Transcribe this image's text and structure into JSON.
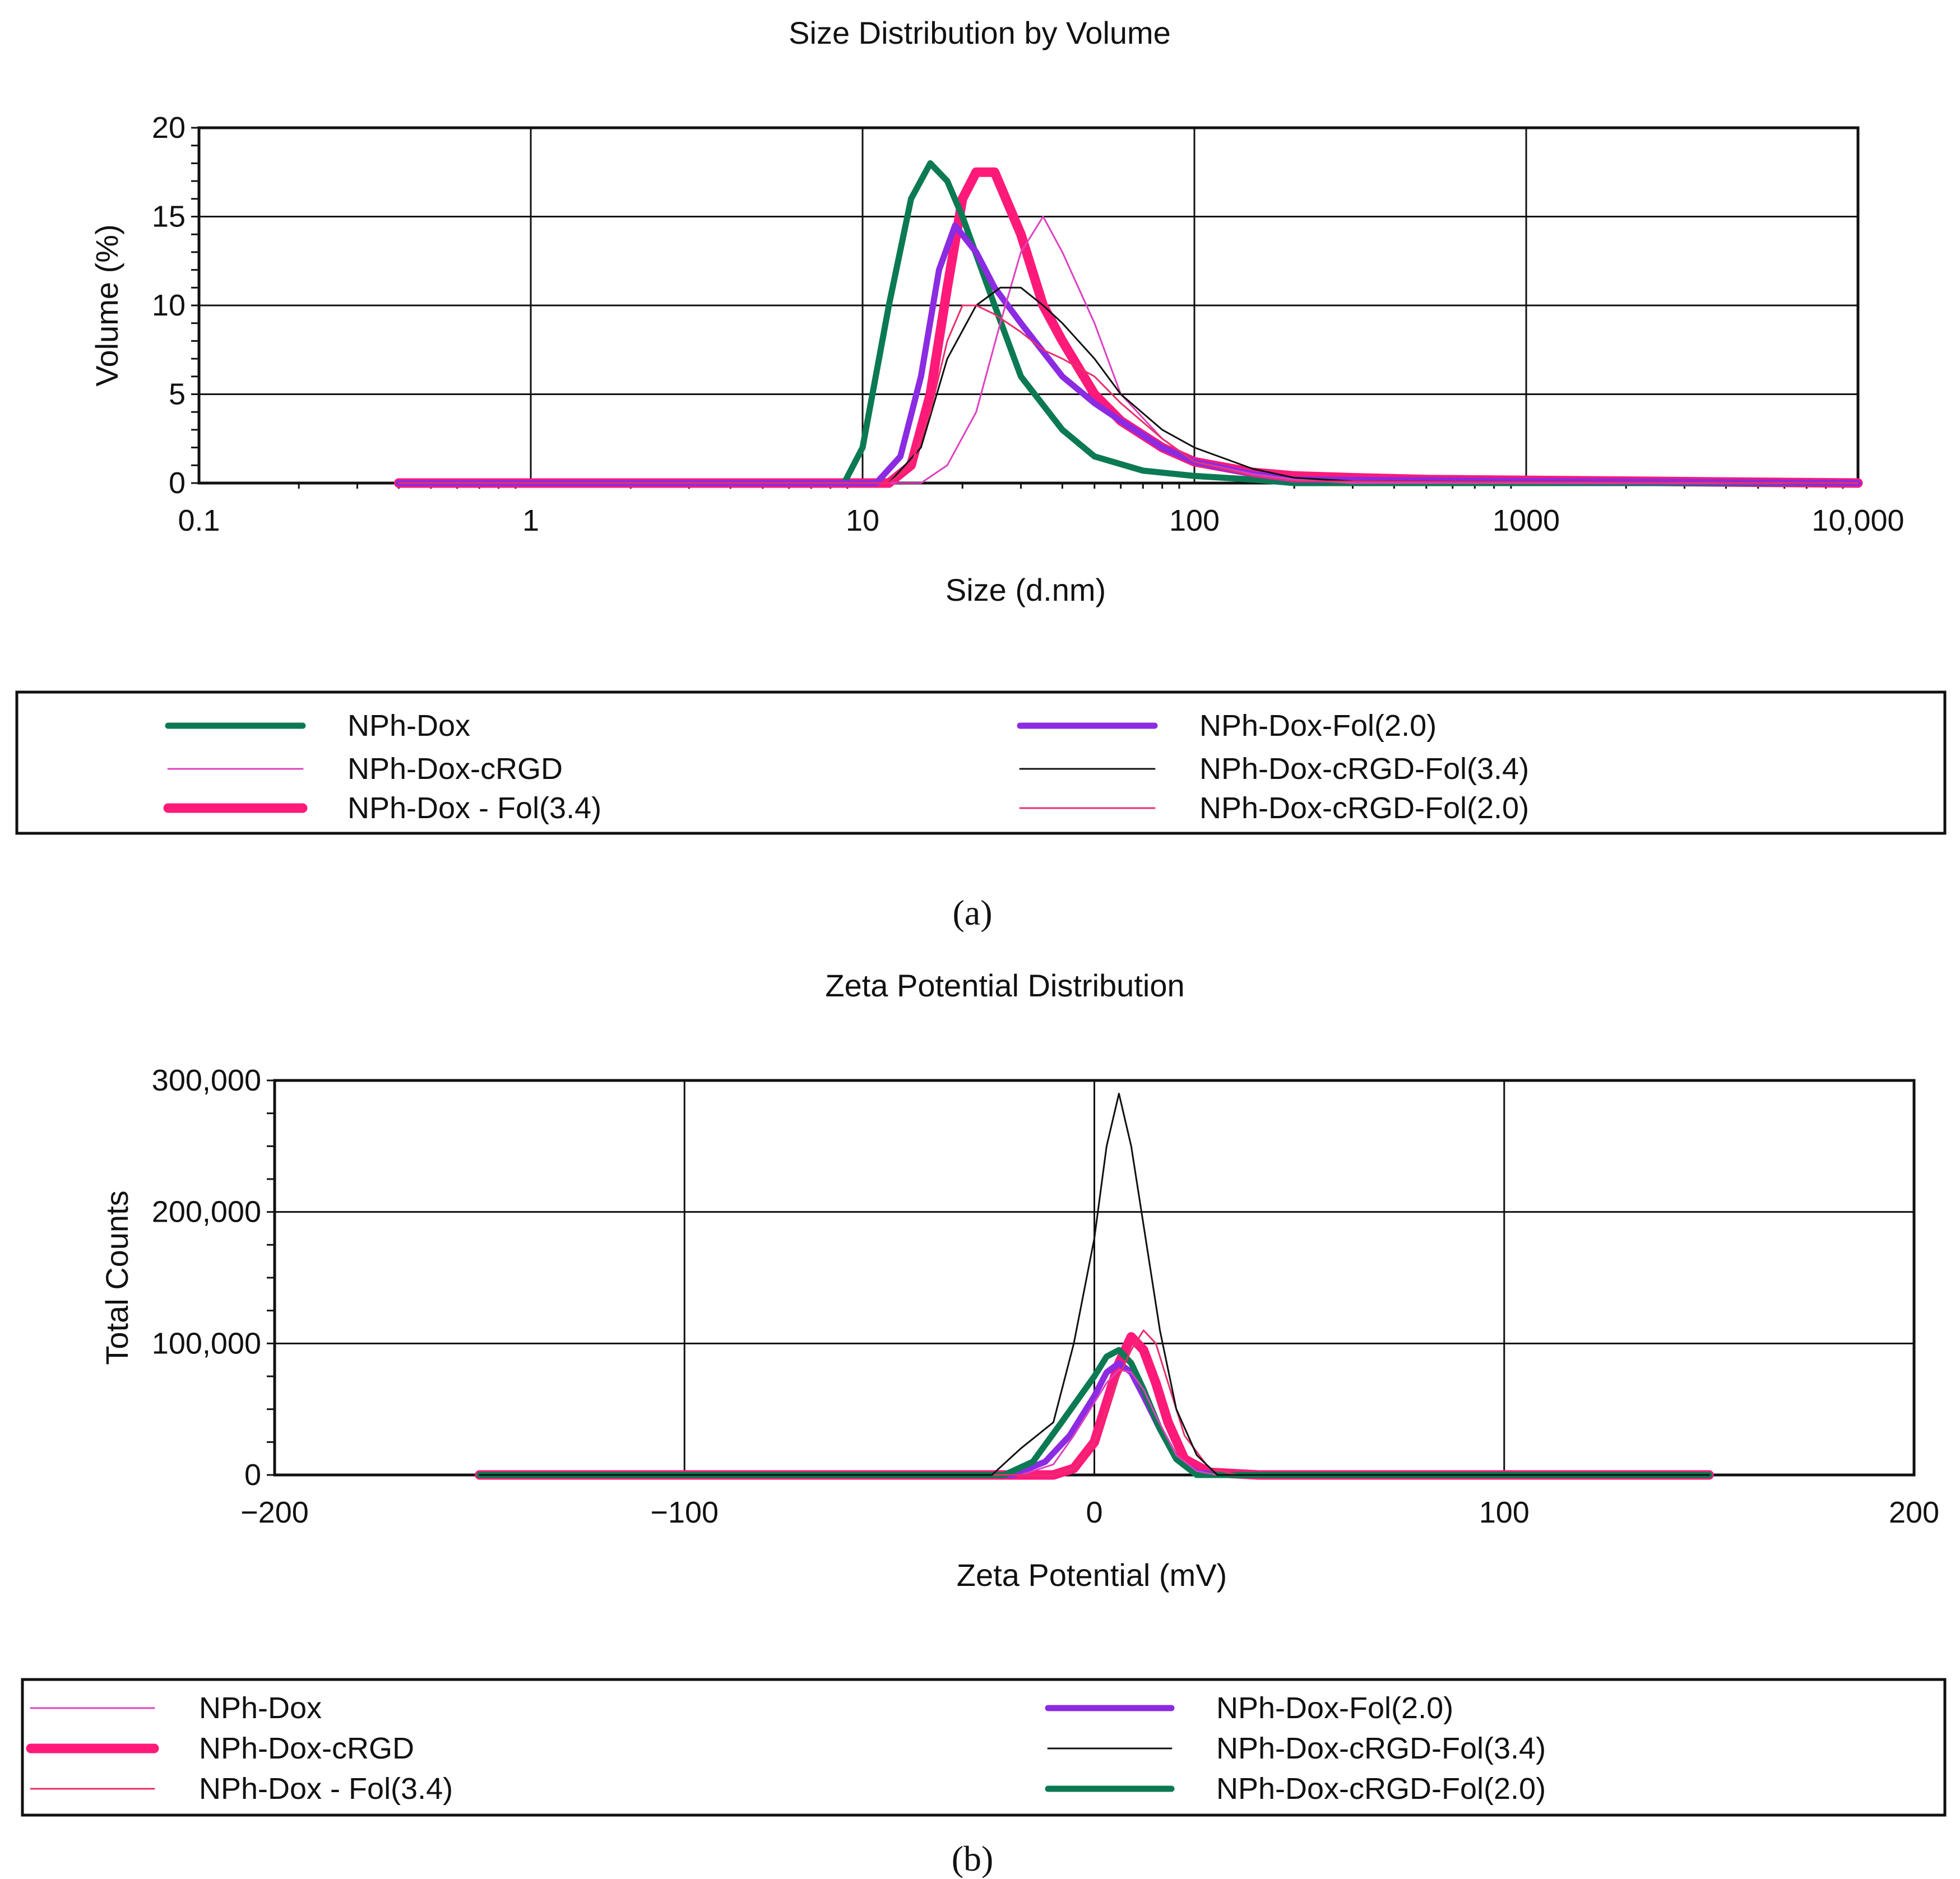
{
  "chart_data": [
    {
      "type": "line",
      "panel_label": "(a)",
      "title": "Size Distribution by Volume",
      "xlabel": "Size (d.nm)",
      "ylabel": "Volume (%)",
      "xscale": "log",
      "xlim": [
        0.1,
        10000
      ],
      "ylim": [
        0,
        20
      ],
      "xticks": [
        0.1,
        1,
        10,
        100,
        1000,
        10000
      ],
      "xtick_labels": [
        "0.1",
        "1",
        "10",
        "100",
        "1000",
        "10,000"
      ],
      "yticks": [
        0,
        5,
        10,
        15,
        20
      ],
      "ytick_labels": [
        "0",
        "5",
        "10",
        "15",
        "20"
      ],
      "grid": true,
      "legend_position": "bottom",
      "series": [
        {
          "name": "NPh-Dox",
          "color": "#0b7a52",
          "weight": "thick",
          "x": [
            0.4,
            8.8,
            10,
            12,
            14,
            16,
            18,
            20,
            25,
            30,
            40,
            50,
            70,
            100,
            150,
            200,
            10000
          ],
          "y": [
            0,
            0,
            2,
            10,
            16,
            18,
            17,
            15,
            10,
            6,
            3,
            1.5,
            0.7,
            0.4,
            0.2,
            0,
            0
          ]
        },
        {
          "name": "NPh-Dox-cRGD",
          "color": "#e040c0",
          "weight": "thin",
          "x": [
            0.4,
            15,
            18,
            22,
            26,
            30,
            35,
            40,
            50,
            60,
            80,
            100,
            150,
            200,
            300,
            10000
          ],
          "y": [
            0,
            0,
            1,
            4,
            9,
            13,
            15,
            13,
            9,
            5,
            2.5,
            1.2,
            0.5,
            0.2,
            0,
            0
          ]
        },
        {
          "name": "NPh-Dox - Fol(3.4)",
          "color": "#ff1a7a",
          "weight": "thickest",
          "x": [
            0.4,
            12,
            14,
            16,
            18,
            20,
            22,
            25,
            30,
            35,
            40,
            50,
            60,
            80,
            100,
            150,
            200,
            300,
            500,
            10000
          ],
          "y": [
            0,
            0,
            1,
            5,
            11,
            16,
            17.5,
            17.5,
            14,
            10,
            8,
            5,
            3.5,
            2,
            1.2,
            0.6,
            0.4,
            0.3,
            0.2,
            0
          ]
        },
        {
          "name": "NPh-Dox-Fol(2.0)",
          "color": "#8b2be2",
          "weight": "thick",
          "x": [
            0.4,
            11,
            13,
            15,
            17,
            19,
            22,
            25,
            30,
            40,
            50,
            60,
            80,
            100,
            150,
            200,
            10000
          ],
          "y": [
            0,
            0,
            1.5,
            6,
            12,
            14.5,
            13,
            11,
            9,
            6,
            4.5,
            3.5,
            2,
            1.2,
            0.5,
            0.2,
            0
          ]
        },
        {
          "name": "NPh-Dox-cRGD-Fol(3.4)",
          "color": "#111111",
          "weight": "thin",
          "x": [
            0.4,
            12,
            15,
            18,
            22,
            26,
            30,
            35,
            40,
            50,
            60,
            80,
            100,
            150,
            200,
            300,
            10000
          ],
          "y": [
            0,
            0,
            2,
            7,
            10,
            11,
            11,
            10,
            9,
            7,
            5,
            3,
            2,
            0.8,
            0.3,
            0.1,
            0
          ]
        },
        {
          "name": "NPh-Dox-cRGD-Fol(2.0)",
          "color": "#e8306a",
          "weight": "thin",
          "x": [
            0.4,
            12,
            14,
            16,
            18,
            20,
            22,
            25,
            30,
            35,
            40,
            50,
            60,
            80,
            100,
            150,
            200,
            10000
          ],
          "y": [
            0,
            0,
            1,
            4,
            8,
            10,
            10,
            9.5,
            8.5,
            7.5,
            7,
            6,
            4.5,
            2.5,
            1.2,
            0.4,
            0.1,
            0
          ]
        }
      ]
    },
    {
      "type": "line",
      "panel_label": "(b)",
      "title": "Zeta Potential Distribution",
      "xlabel": "Zeta Potential (mV)",
      "ylabel": "Total Counts",
      "xlim": [
        -200,
        200
      ],
      "ylim": [
        0,
        300000
      ],
      "xticks": [
        -200,
        -100,
        0,
        100,
        200
      ],
      "xtick_labels": [
        "−200",
        "−100",
        "0",
        "100",
        "200"
      ],
      "yticks": [
        0,
        100000,
        200000,
        300000
      ],
      "ytick_labels": [
        "0",
        "100,000",
        "200,000",
        "300,000"
      ],
      "grid": true,
      "legend_position": "bottom",
      "series": [
        {
          "name": "NPh-Dox",
          "color": "#e040c0",
          "weight": "thin",
          "x": [
            -150,
            -18,
            -10,
            -5,
            0,
            3,
            6,
            9,
            12,
            15,
            20,
            25,
            30,
            150
          ],
          "y": [
            0,
            0,
            8000,
            30000,
            55000,
            70000,
            80000,
            78000,
            65000,
            45000,
            15000,
            3000,
            0,
            0
          ]
        },
        {
          "name": "NPh-Dox-cRGD",
          "color": "#ff1a7a",
          "weight": "thickest",
          "x": [
            -150,
            -10,
            -5,
            0,
            3,
            6,
            9,
            12,
            15,
            18,
            22,
            28,
            40,
            150
          ],
          "y": [
            0,
            0,
            5000,
            25000,
            55000,
            85000,
            105000,
            95000,
            70000,
            40000,
            12000,
            2000,
            0,
            0
          ]
        },
        {
          "name": "NPh-Dox - Fol(3.4)",
          "color": "#e8306a",
          "weight": "thin",
          "x": [
            -150,
            -10,
            -5,
            0,
            3,
            6,
            9,
            12,
            15,
            18,
            22,
            28,
            35,
            150
          ],
          "y": [
            0,
            0,
            5000,
            25000,
            50000,
            75000,
            95000,
            110000,
            100000,
            70000,
            30000,
            5000,
            0,
            0
          ]
        },
        {
          "name": "NPh-Dox-Fol(2.0)",
          "color": "#8b2be2",
          "weight": "thick",
          "x": [
            -150,
            -20,
            -12,
            -6,
            0,
            3,
            6,
            9,
            12,
            16,
            20,
            25,
            30,
            150
          ],
          "y": [
            0,
            0,
            10000,
            30000,
            60000,
            78000,
            85000,
            78000,
            60000,
            35000,
            12000,
            2000,
            0,
            0
          ]
        },
        {
          "name": "NPh-Dox-cRGD-Fol(3.4)",
          "color": "#111111",
          "weight": "thin",
          "x": [
            -150,
            -25,
            -18,
            -10,
            -5,
            0,
            3,
            6,
            9,
            12,
            16,
            20,
            25,
            30,
            150
          ],
          "y": [
            0,
            0,
            20000,
            40000,
            100000,
            180000,
            250000,
            290000,
            250000,
            190000,
            110000,
            50000,
            15000,
            0,
            0
          ]
        },
        {
          "name": "NPh-Dox-cRGD-Fol(2.0)",
          "color": "#0b7a52",
          "weight": "thick",
          "x": [
            -150,
            -22,
            -15,
            -8,
            0,
            3,
            6,
            9,
            12,
            16,
            20,
            25,
            150
          ],
          "y": [
            0,
            0,
            10000,
            40000,
            75000,
            90000,
            95000,
            85000,
            65000,
            35000,
            12000,
            0,
            0
          ]
        }
      ]
    }
  ]
}
